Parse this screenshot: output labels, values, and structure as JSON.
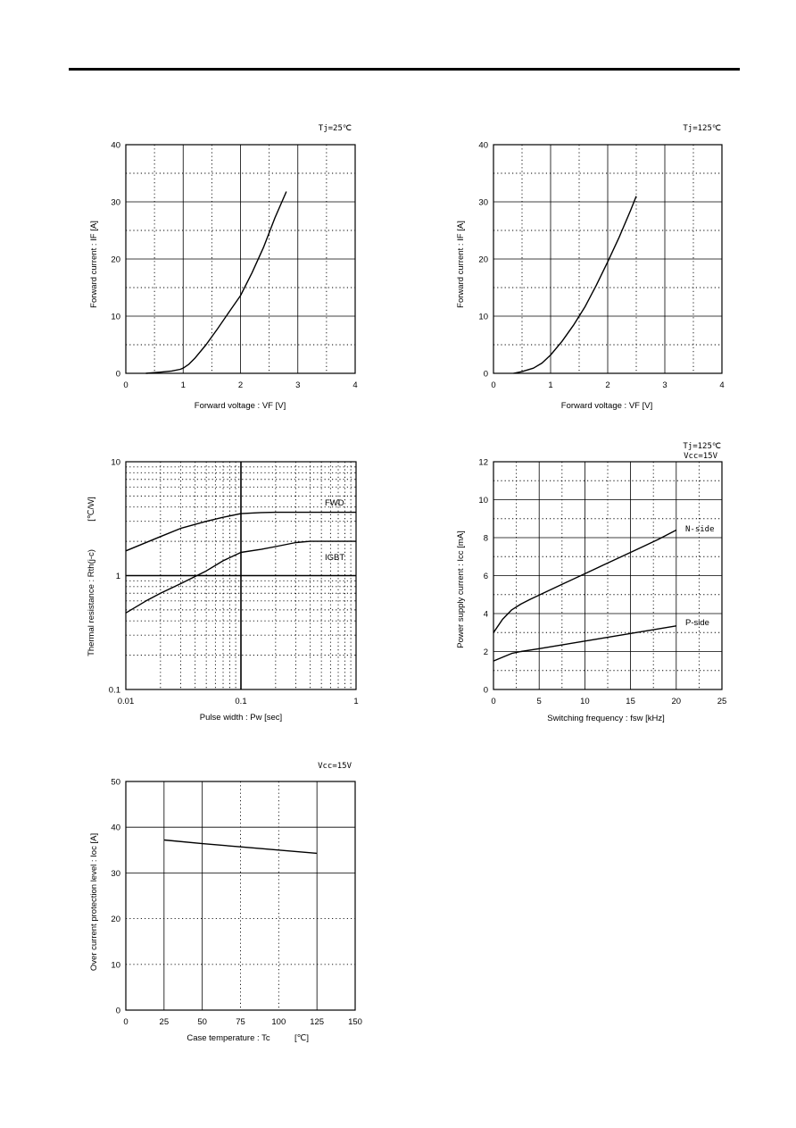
{
  "chart_data": [
    {
      "id": "c1",
      "type": "line",
      "condition": "Tj=25℃",
      "xlabel": "Forward voltage : VF [V]",
      "ylabel": "Forward current : IF [A]",
      "xlim": [
        0,
        4
      ],
      "ylim": [
        0,
        40
      ],
      "xticks": [
        "0",
        "1",
        "2",
        "3",
        "4"
      ],
      "yticks": [
        "0",
        "10",
        "20",
        "30",
        "40"
      ],
      "series": [
        {
          "x": [
            0.35,
            0.6,
            0.8,
            0.95,
            1.0,
            1.1,
            1.2,
            1.4,
            1.6,
            1.8,
            2.0,
            2.2,
            2.4,
            2.6,
            2.8
          ],
          "y": [
            0,
            0.2,
            0.4,
            0.7,
            0.9,
            1.6,
            2.6,
            5.0,
            7.8,
            10.7,
            13.6,
            17.6,
            22.0,
            27.2,
            31.8
          ]
        }
      ]
    },
    {
      "id": "c2",
      "type": "line",
      "condition": "Tj=125℃",
      "xlabel": "Forward voltage : VF [V]",
      "ylabel": "Forward current : IF [A]",
      "xlim": [
        0,
        4
      ],
      "ylim": [
        0,
        40
      ],
      "xticks": [
        "0",
        "1",
        "2",
        "3",
        "4"
      ],
      "yticks": [
        "0",
        "10",
        "20",
        "30",
        "40"
      ],
      "series": [
        {
          "x": [
            0.35,
            0.5,
            0.7,
            0.85,
            1.0,
            1.2,
            1.4,
            1.6,
            1.8,
            2.0,
            2.2,
            2.4,
            2.5
          ],
          "y": [
            0,
            0.3,
            0.9,
            1.8,
            3.2,
            5.6,
            8.4,
            11.6,
            15.4,
            19.5,
            23.8,
            28.5,
            31.0
          ]
        }
      ]
    },
    {
      "id": "c3",
      "type": "line",
      "xscale": "log",
      "yscale": "log",
      "xlabel": "Pulse width : Pw [sec]",
      "ylabel": "Thermal resistance : Rth(j-c)",
      "yunit": "[℃/W]",
      "xlim": [
        0.01,
        1
      ],
      "ylim": [
        0.1,
        10
      ],
      "xticks": [
        "0.01",
        "0.1",
        "1"
      ],
      "yticks": [
        "0.1",
        "1",
        "10"
      ],
      "series": [
        {
          "name": "FWD",
          "x": [
            0.01,
            0.02,
            0.03,
            0.05,
            0.07,
            0.1,
            0.15,
            0.2,
            0.3,
            0.5,
            1.0
          ],
          "y": [
            1.65,
            2.2,
            2.6,
            3.0,
            3.25,
            3.5,
            3.58,
            3.6,
            3.6,
            3.6,
            3.6
          ]
        },
        {
          "name": "IGBT",
          "x": [
            0.01,
            0.015,
            0.02,
            0.03,
            0.05,
            0.07,
            0.1,
            0.15,
            0.2,
            0.3,
            0.4,
            0.6,
            1.0
          ],
          "y": [
            0.47,
            0.6,
            0.7,
            0.85,
            1.1,
            1.35,
            1.6,
            1.7,
            1.8,
            1.95,
            2.0,
            2.0,
            2.0
          ]
        }
      ]
    },
    {
      "id": "c4",
      "type": "line",
      "condition": "Tj=125℃",
      "condition2": "Vcc=15V",
      "xlabel": "Switching frequency : fsw [kHz]",
      "ylabel": "Power supply current : Icc [mA]",
      "xlim": [
        0,
        25
      ],
      "ylim": [
        0,
        12
      ],
      "xticks": [
        "0",
        "5",
        "10",
        "15",
        "20",
        "25"
      ],
      "yticks": [
        "0",
        "2",
        "4",
        "6",
        "8",
        "10",
        "12"
      ],
      "series": [
        {
          "name": "N-side",
          "x": [
            0,
            1,
            2,
            3,
            4,
            6,
            8,
            10,
            12,
            14,
            16,
            18,
            20
          ],
          "y": [
            3.0,
            3.7,
            4.2,
            4.5,
            4.75,
            5.2,
            5.65,
            6.1,
            6.55,
            7.0,
            7.45,
            7.9,
            8.4
          ]
        },
        {
          "name": "P-side",
          "x": [
            0,
            1,
            2,
            3,
            5,
            7.5,
            10,
            12.5,
            15,
            17.5,
            20
          ],
          "y": [
            1.5,
            1.7,
            1.9,
            2.0,
            2.15,
            2.35,
            2.55,
            2.75,
            2.95,
            3.15,
            3.35
          ]
        }
      ]
    },
    {
      "id": "c5",
      "type": "line",
      "condition": "Vcc=15V",
      "xlabel": "Case temperature : Tc",
      "xunit": "[℃]",
      "ylabel": "Over current protection level : Ioc [A]",
      "xlim": [
        0,
        150
      ],
      "ylim": [
        0,
        50
      ],
      "xticks": [
        "0",
        "25",
        "50",
        "75",
        "100",
        "125",
        "150"
      ],
      "yticks": [
        "0",
        "10",
        "20",
        "30",
        "40",
        "50"
      ],
      "series": [
        {
          "x": [
            25,
            50,
            75,
            100,
            125
          ],
          "y": [
            37.2,
            36.4,
            35.7,
            35.0,
            34.3
          ]
        }
      ]
    }
  ]
}
